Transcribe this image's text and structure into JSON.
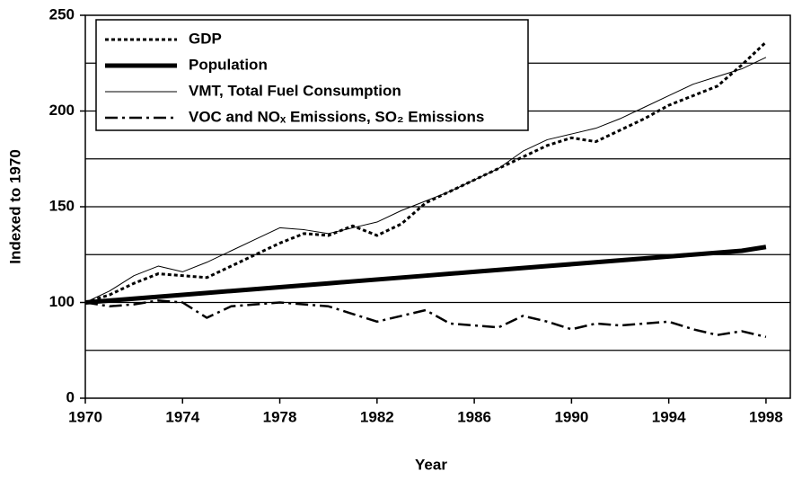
{
  "chart_data": {
    "type": "line",
    "xlabel": "Year",
    "ylabel": "Indexed to 1970",
    "x": [
      1970,
      1971,
      1972,
      1973,
      1974,
      1975,
      1976,
      1977,
      1978,
      1979,
      1980,
      1981,
      1982,
      1983,
      1984,
      1985,
      1986,
      1987,
      1988,
      1989,
      1990,
      1991,
      1992,
      1993,
      1994,
      1995,
      1996,
      1997,
      1998
    ],
    "series": [
      {
        "name": "GDP",
        "color": "#000000",
        "style": "dotted",
        "values": [
          100,
          104,
          110,
          115,
          114,
          113,
          119,
          125,
          131,
          136,
          135,
          140,
          135,
          141,
          152,
          158,
          164,
          170,
          176,
          182,
          186,
          184,
          190,
          196,
          203,
          208,
          213,
          224,
          236
        ]
      },
      {
        "name": "Population",
        "color": "#000000",
        "style": "thick",
        "values": [
          100,
          101,
          102,
          103,
          104,
          105,
          106,
          107,
          108,
          109,
          110,
          111,
          112,
          113,
          114,
          115,
          116,
          117,
          118,
          119,
          120,
          121,
          122,
          123,
          124,
          125,
          126,
          127,
          129
        ]
      },
      {
        "name": "VMT, Total Fuel Consumption",
        "color": "#000000",
        "style": "thin",
        "values": [
          100,
          106,
          114,
          119,
          116,
          121,
          127,
          133,
          139,
          138,
          136,
          139,
          142,
          148,
          153,
          158,
          164,
          170,
          179,
          185,
          188,
          191,
          196,
          202,
          208,
          214,
          218,
          222,
          228
        ]
      },
      {
        "name": "VOC and NOₓ Emissions, SO₂ Emissions",
        "color": "#000000",
        "style": "dashdot",
        "values": [
          100,
          98,
          99,
          101,
          100,
          92,
          98,
          99,
          100,
          99,
          98,
          94,
          90,
          93,
          96,
          89,
          88,
          87,
          93,
          90,
          86,
          89,
          88,
          89,
          90,
          86,
          83,
          85,
          82
        ]
      }
    ],
    "xlim": [
      1970,
      1999
    ],
    "xticks": [
      1970,
      1974,
      1978,
      1982,
      1986,
      1990,
      1994,
      1998
    ],
    "ylim": [
      50,
      250
    ],
    "yticks": [
      {
        "value": 50,
        "label": "0"
      },
      100,
      150,
      200,
      250
    ],
    "grid_lines": [
      75,
      100,
      125,
      150,
      175,
      200,
      225
    ],
    "legend": "upper left"
  }
}
